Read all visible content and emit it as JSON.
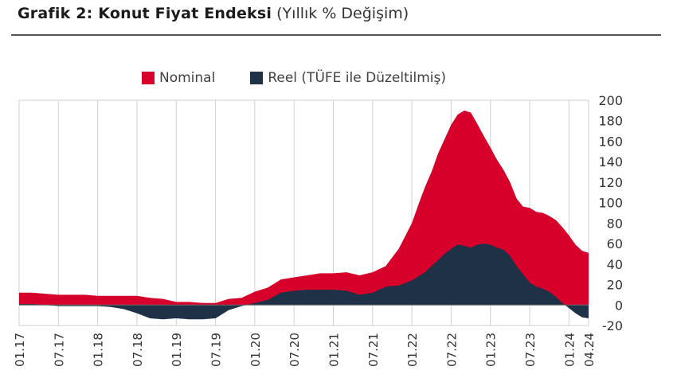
{
  "title": {
    "main": "Grafik 2: Konut Fiyat Endeksi",
    "sub": "(Yıllık % Değişim)"
  },
  "legend": {
    "nominal": "Nominal",
    "reel": "Reel (TÜFE ile Düzeltilmiş)"
  },
  "colors": {
    "nominal": "#d6002a",
    "reel": "#1e3146"
  },
  "chart_data": {
    "type": "area",
    "title": "Grafik 2: Konut Fiyat Endeksi",
    "x_tick_labels": [
      "01.17",
      "07.17",
      "01.18",
      "07.18",
      "01.19",
      "07.19",
      "01.20",
      "07.20",
      "01.21",
      "07.21",
      "01.22",
      "07.22",
      "01.23",
      "07.23",
      "01.24",
      "04.24"
    ],
    "ylim": [
      -20,
      200
    ],
    "y_ticks": [
      200,
      180,
      160,
      140,
      120,
      100,
      80,
      60,
      40,
      20,
      0,
      -20
    ],
    "y_axis_position": "right",
    "grid": "vertical",
    "legend_position": "top",
    "series": [
      {
        "name": "Nominal",
        "points": [
          [
            "01.17",
            12
          ],
          [
            "03.17",
            12
          ],
          [
            "05.17",
            11
          ],
          [
            "07.17",
            10
          ],
          [
            "09.17",
            10
          ],
          [
            "11.17",
            10
          ],
          [
            "01.18",
            9
          ],
          [
            "03.18",
            9
          ],
          [
            "05.18",
            9
          ],
          [
            "07.18",
            9
          ],
          [
            "09.18",
            7
          ],
          [
            "11.18",
            6
          ],
          [
            "01.19",
            3
          ],
          [
            "03.19",
            3
          ],
          [
            "05.19",
            2
          ],
          [
            "07.19",
            2
          ],
          [
            "09.19",
            6
          ],
          [
            "11.19",
            7
          ],
          [
            "01.20",
            13
          ],
          [
            "03.20",
            17
          ],
          [
            "05.20",
            25
          ],
          [
            "07.20",
            27
          ],
          [
            "09.20",
            29
          ],
          [
            "11.20",
            31
          ],
          [
            "01.21",
            31
          ],
          [
            "03.21",
            32
          ],
          [
            "05.21",
            29
          ],
          [
            "07.21",
            32
          ],
          [
            "09.21",
            38
          ],
          [
            "11.21",
            55
          ],
          [
            "01.22",
            80
          ],
          [
            "02.22",
            98
          ],
          [
            "03.22",
            115
          ],
          [
            "04.22",
            130
          ],
          [
            "05.22",
            148
          ],
          [
            "06.22",
            162
          ],
          [
            "07.22",
            176
          ],
          [
            "08.22",
            186
          ],
          [
            "09.22",
            190
          ],
          [
            "10.22",
            188
          ],
          [
            "11.22",
            177
          ],
          [
            "12.22",
            165
          ],
          [
            "01.23",
            154
          ],
          [
            "02.23",
            142
          ],
          [
            "03.23",
            132
          ],
          [
            "04.23",
            120
          ],
          [
            "05.23",
            104
          ],
          [
            "06.23",
            96
          ],
          [
            "07.23",
            95
          ],
          [
            "08.23",
            91
          ],
          [
            "09.23",
            90
          ],
          [
            "10.23",
            87
          ],
          [
            "11.23",
            83
          ],
          [
            "12.23",
            76
          ],
          [
            "01.24",
            68
          ],
          [
            "02.24",
            59
          ],
          [
            "03.24",
            53
          ],
          [
            "04.24",
            51
          ]
        ]
      },
      {
        "name": "Reel (TÜFE ile Düzeltilmiş)",
        "points": [
          [
            "01.17",
            1
          ],
          [
            "03.17",
            1
          ],
          [
            "05.17",
            0
          ],
          [
            "07.17",
            -1
          ],
          [
            "09.17",
            -1
          ],
          [
            "11.17",
            -1
          ],
          [
            "01.18",
            -1
          ],
          [
            "03.18",
            -2
          ],
          [
            "05.18",
            -4
          ],
          [
            "07.18",
            -8
          ],
          [
            "09.18",
            -13
          ],
          [
            "11.18",
            -14
          ],
          [
            "01.19",
            -13
          ],
          [
            "03.19",
            -14
          ],
          [
            "05.19",
            -14
          ],
          [
            "07.19",
            -13
          ],
          [
            "09.19",
            -5
          ],
          [
            "11.19",
            -1
          ],
          [
            "01.20",
            2
          ],
          [
            "03.20",
            5
          ],
          [
            "05.20",
            12
          ],
          [
            "07.20",
            14
          ],
          [
            "09.20",
            15
          ],
          [
            "11.20",
            15
          ],
          [
            "01.21",
            15
          ],
          [
            "03.21",
            14
          ],
          [
            "05.21",
            10
          ],
          [
            "07.21",
            12
          ],
          [
            "09.21",
            18
          ],
          [
            "11.21",
            19
          ],
          [
            "01.22",
            24
          ],
          [
            "02.22",
            28
          ],
          [
            "03.22",
            32
          ],
          [
            "04.22",
            38
          ],
          [
            "05.22",
            44
          ],
          [
            "06.22",
            50
          ],
          [
            "07.22",
            55
          ],
          [
            "08.22",
            59
          ],
          [
            "09.22",
            58
          ],
          [
            "10.22",
            56
          ],
          [
            "11.22",
            59
          ],
          [
            "12.22",
            60
          ],
          [
            "01.23",
            59
          ],
          [
            "02.23",
            56
          ],
          [
            "03.23",
            54
          ],
          [
            "04.23",
            48
          ],
          [
            "05.23",
            38
          ],
          [
            "06.23",
            30
          ],
          [
            "07.23",
            22
          ],
          [
            "08.23",
            18
          ],
          [
            "09.23",
            16
          ],
          [
            "10.23",
            13
          ],
          [
            "11.23",
            8
          ],
          [
            "12.23",
            2
          ],
          [
            "01.24",
            -3
          ],
          [
            "02.24",
            -8
          ],
          [
            "03.24",
            -12
          ],
          [
            "04.24",
            -13
          ]
        ]
      }
    ]
  }
}
